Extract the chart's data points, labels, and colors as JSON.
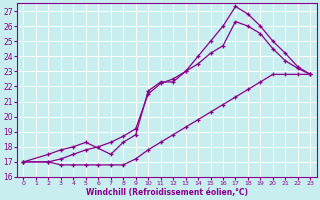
{
  "xlabel": "Windchill (Refroidissement éolien,°C)",
  "xlim": [
    -0.5,
    23.5
  ],
  "ylim": [
    16,
    27.5
  ],
  "yticks": [
    16,
    17,
    18,
    19,
    20,
    21,
    22,
    23,
    24,
    25,
    26,
    27
  ],
  "xticks": [
    0,
    1,
    2,
    3,
    4,
    5,
    6,
    7,
    8,
    9,
    10,
    11,
    12,
    13,
    14,
    15,
    16,
    17,
    18,
    19,
    20,
    21,
    22,
    23
  ],
  "bg_color": "#c8eef0",
  "line_color": "#8b008b",
  "grid_color": "#ffffff",
  "line1_x": [
    0,
    2,
    3,
    4,
    5,
    6,
    7,
    8,
    9,
    10,
    11,
    12,
    13,
    14,
    15,
    16,
    17,
    18,
    19,
    20,
    21,
    22,
    23
  ],
  "line1_y": [
    17,
    17,
    17.2,
    17.5,
    17.8,
    18.0,
    18.3,
    18.7,
    19.2,
    21.5,
    22.2,
    22.5,
    23.0,
    23.5,
    24.2,
    24.7,
    26.3,
    26.0,
    25.5,
    24.5,
    23.7,
    23.2,
    22.8
  ],
  "line2_x": [
    0,
    2,
    3,
    4,
    5,
    6,
    7,
    8,
    9,
    10,
    11,
    12,
    13,
    14,
    15,
    16,
    17,
    18,
    19,
    20,
    21,
    22,
    23
  ],
  "line2_y": [
    17,
    17,
    16.8,
    16.8,
    16.8,
    16.8,
    16.8,
    16.8,
    17.2,
    17.8,
    18.3,
    18.8,
    19.3,
    19.8,
    20.3,
    20.8,
    21.3,
    21.8,
    22.3,
    22.8,
    22.8,
    22.8,
    22.8
  ],
  "line3_x": [
    0,
    2,
    3,
    4,
    5,
    7,
    8,
    9,
    10,
    11,
    12,
    13,
    14,
    15,
    16,
    17,
    18,
    19,
    20,
    21,
    22,
    23
  ],
  "line3_y": [
    17,
    17.5,
    17.8,
    18.0,
    18.3,
    17.5,
    18.3,
    18.8,
    21.7,
    22.3,
    22.3,
    23.0,
    24.0,
    25.0,
    26.0,
    27.3,
    26.8,
    26.0,
    25.0,
    24.2,
    23.3,
    22.8
  ]
}
